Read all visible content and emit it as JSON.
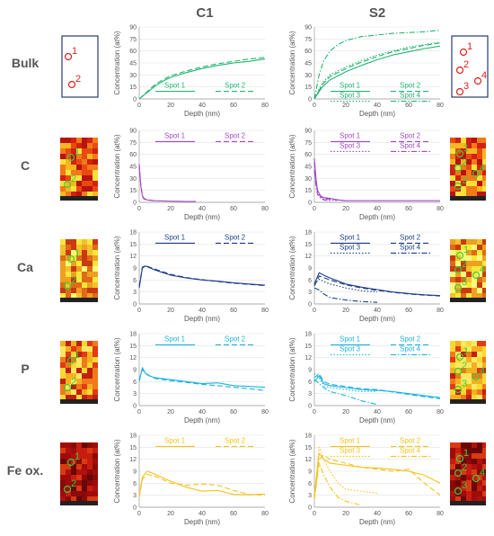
{
  "columns": [
    "C1",
    "S2"
  ],
  "rows": [
    "Bulk",
    "C",
    "Ca",
    "P",
    "Fe ox."
  ],
  "colors": {
    "Bulk": "#22b573",
    "C": "#a349c8",
    "Ca": "#1f3f8a",
    "P": "#1ab4e0",
    "Fe ox.": "#f5c21b",
    "spot_marker_bulk": "#e0201b",
    "spot_marker_map": "#3ccb3c"
  },
  "chart_data": [
    {
      "type": "line",
      "row": "Bulk",
      "sample": "C1",
      "xlabel": "Depth (nm)",
      "ylabel": "Concentration (at%)",
      "xlim": [
        0,
        80
      ],
      "ylim": [
        0,
        90
      ],
      "yticks": [
        0,
        15,
        30,
        45,
        60,
        75,
        90
      ],
      "xticks": [
        0,
        20,
        40,
        60,
        80
      ],
      "series": [
        {
          "name": "Spot 1",
          "style": "solid",
          "x": [
            0,
            5,
            10,
            15,
            20,
            30,
            40,
            50,
            60,
            70,
            80
          ],
          "y": [
            0,
            8,
            16,
            22,
            27,
            33,
            38,
            42,
            45,
            47,
            50
          ]
        },
        {
          "name": "Spot 2",
          "style": "dash",
          "x": [
            0,
            5,
            10,
            15,
            20,
            30,
            40,
            50,
            60,
            70,
            80
          ],
          "y": [
            0,
            9,
            18,
            24,
            29,
            35,
            40,
            44,
            47,
            50,
            52
          ]
        }
      ]
    },
    {
      "type": "line",
      "row": "Bulk",
      "sample": "S2",
      "xlabel": "Depth (nm)",
      "ylabel": "Concentration (at%)",
      "xlim": [
        0,
        80
      ],
      "ylim": [
        0,
        90
      ],
      "yticks": [
        0,
        15,
        30,
        45,
        60,
        75,
        90
      ],
      "xticks": [
        0,
        20,
        40,
        60,
        80
      ],
      "series": [
        {
          "name": "Spot 1",
          "style": "solid",
          "x": [
            0,
            5,
            10,
            20,
            30,
            40,
            50,
            60,
            70,
            80
          ],
          "y": [
            0,
            15,
            24,
            34,
            42,
            49,
            55,
            59,
            63,
            66
          ]
        },
        {
          "name": "Spot 2",
          "style": "dash",
          "x": [
            0,
            5,
            10,
            20,
            30,
            40,
            50,
            60,
            70,
            80
          ],
          "y": [
            0,
            18,
            28,
            38,
            46,
            53,
            59,
            63,
            67,
            70
          ]
        },
        {
          "name": "Spot 3",
          "style": "dot",
          "x": [
            0,
            5,
            10,
            20,
            30,
            40,
            50,
            60,
            70,
            80
          ],
          "y": [
            0,
            20,
            30,
            40,
            48,
            55,
            60,
            65,
            68,
            71
          ]
        },
        {
          "name": "Spot 4",
          "style": "dashdot",
          "x": [
            0,
            3,
            6,
            10,
            15,
            20,
            30,
            40,
            50,
            60,
            70,
            80
          ],
          "y": [
            0,
            30,
            48,
            60,
            68,
            73,
            78,
            80,
            82,
            83,
            84,
            86
          ]
        }
      ]
    },
    {
      "type": "line",
      "row": "C",
      "sample": "C1",
      "xlabel": "Depth (nm)",
      "ylabel": "Concentration (at%)",
      "xlim": [
        0,
        80
      ],
      "ylim": [
        0,
        90
      ],
      "yticks": [
        0,
        15,
        30,
        45,
        60,
        75,
        90
      ],
      "xticks": [
        0,
        20,
        40,
        60,
        80
      ],
      "series": [
        {
          "name": "Spot 1",
          "style": "solid",
          "x": [
            0,
            1,
            2,
            3,
            5,
            10,
            20,
            30,
            36
          ],
          "y": [
            45,
            20,
            8,
            4,
            3,
            2,
            1.5,
            1,
            1
          ]
        },
        {
          "name": "Spot 2",
          "style": "dash",
          "x": [
            0,
            1,
            2,
            3,
            5,
            10
          ],
          "y": [
            48,
            22,
            9,
            5,
            3,
            2
          ]
        }
      ]
    },
    {
      "type": "line",
      "row": "C",
      "sample": "S2",
      "xlabel": "Depth (nm)",
      "ylabel": "Concentration (at%)",
      "xlim": [
        0,
        80
      ],
      "ylim": [
        0,
        90
      ],
      "yticks": [
        0,
        15,
        30,
        45,
        60,
        75,
        90
      ],
      "xticks": [
        0,
        20,
        40,
        60,
        80
      ],
      "series": [
        {
          "name": "Spot 1",
          "style": "solid",
          "x": [
            0,
            1,
            2,
            4,
            6,
            10,
            15,
            20,
            30,
            40,
            60,
            80
          ],
          "y": [
            55,
            30,
            15,
            8,
            6,
            5,
            3,
            2,
            2,
            2,
            2,
            2
          ]
        },
        {
          "name": "Spot 2",
          "style": "dash",
          "x": [
            0,
            1,
            2,
            4,
            6,
            10,
            15,
            20
          ],
          "y": [
            50,
            28,
            14,
            7,
            5,
            4,
            3,
            2
          ]
        },
        {
          "name": "Spot 3",
          "style": "dot",
          "x": [
            0,
            1,
            2,
            4,
            6,
            10,
            15
          ],
          "y": [
            45,
            24,
            12,
            7,
            4,
            3,
            2
          ]
        },
        {
          "name": "Spot 4",
          "style": "dashdot",
          "x": [
            0,
            1,
            2,
            4,
            6,
            10
          ],
          "y": [
            40,
            20,
            10,
            5,
            3,
            2
          ]
        }
      ]
    },
    {
      "type": "line",
      "row": "Ca",
      "sample": "C1",
      "xlabel": "Depth (nm)",
      "ylabel": "Concentration (at%)",
      "xlim": [
        0,
        80
      ],
      "ylim": [
        0,
        18
      ],
      "yticks": [
        0,
        3,
        6,
        9,
        12,
        15,
        18
      ],
      "xticks": [
        0,
        20,
        40,
        60,
        80
      ],
      "series": [
        {
          "name": "Spot 1",
          "style": "solid",
          "x": [
            0,
            2,
            4,
            10,
            20,
            30,
            40,
            50,
            60,
            70,
            80
          ],
          "y": [
            4,
            9,
            9.5,
            8.5,
            7.2,
            6.5,
            6,
            5.7,
            5.3,
            5,
            4.7
          ]
        },
        {
          "name": "Spot 2",
          "style": "dash",
          "x": [
            0,
            2,
            4,
            10,
            20,
            30,
            40,
            50,
            60,
            70,
            80
          ],
          "y": [
            4.5,
            9.2,
            9.6,
            8.7,
            7.4,
            6.6,
            6.1,
            5.6,
            5.2,
            4.9,
            4.6
          ]
        }
      ]
    },
    {
      "type": "line",
      "row": "Ca",
      "sample": "S2",
      "xlabel": "Depth (nm)",
      "ylabel": "Concentration (at%)",
      "xlim": [
        0,
        80
      ],
      "ylim": [
        0,
        18
      ],
      "yticks": [
        0,
        3,
        6,
        9,
        12,
        15,
        18
      ],
      "xticks": [
        0,
        20,
        40,
        60,
        80
      ],
      "series": [
        {
          "name": "Spot 1",
          "style": "solid",
          "x": [
            0,
            3,
            6,
            10,
            20,
            30,
            40,
            50,
            60,
            70,
            80
          ],
          "y": [
            5,
            7.8,
            7.2,
            6.5,
            5,
            4.2,
            3.6,
            3,
            2.6,
            2.3,
            2.1
          ]
        },
        {
          "name": "Spot 2",
          "style": "dash",
          "x": [
            0,
            3,
            6,
            10,
            20,
            30,
            40,
            50,
            60,
            70,
            80
          ],
          "y": [
            4.5,
            7,
            6.6,
            6,
            4.8,
            4,
            3.4,
            2.9,
            2.5,
            2.2,
            2
          ]
        },
        {
          "name": "Spot 3",
          "style": "dot",
          "x": [
            0,
            3,
            6,
            10,
            20,
            30,
            40
          ],
          "y": [
            5,
            6.2,
            5.6,
            5,
            4,
            3.3,
            3
          ]
        },
        {
          "name": "Spot 4",
          "style": "dashdot",
          "x": [
            0,
            3,
            6,
            10,
            20,
            30,
            40
          ],
          "y": [
            4,
            3.5,
            2.5,
            1.6,
            1,
            0.6,
            0.4
          ]
        }
      ]
    },
    {
      "type": "line",
      "row": "P",
      "sample": "C1",
      "xlabel": "Depth (nm)",
      "ylabel": "Concentration (at%)",
      "xlim": [
        0,
        80
      ],
      "ylim": [
        0,
        18
      ],
      "yticks": [
        0,
        3,
        6,
        9,
        12,
        15,
        18
      ],
      "xticks": [
        0,
        20,
        40,
        60,
        80
      ],
      "series": [
        {
          "name": "Spot 1",
          "style": "solid",
          "x": [
            0,
            2,
            4,
            6,
            10,
            20,
            30,
            40,
            50,
            60,
            70,
            80
          ],
          "y": [
            6,
            9.5,
            8,
            7.5,
            7,
            6.5,
            6,
            5.5,
            5.7,
            5,
            4.8,
            4.6
          ]
        },
        {
          "name": "Spot 2",
          "style": "dash",
          "x": [
            0,
            2,
            4,
            6,
            10,
            20,
            30,
            40,
            50,
            60,
            70,
            80
          ],
          "y": [
            6.5,
            9,
            8.2,
            7.6,
            6.8,
            6.2,
            5.8,
            5.3,
            5,
            4.6,
            4.2,
            3.8
          ]
        }
      ]
    },
    {
      "type": "line",
      "row": "P",
      "sample": "S2",
      "xlabel": "Depth (nm)",
      "ylabel": "Concentration (at%)",
      "xlim": [
        0,
        80
      ],
      "ylim": [
        0,
        18
      ],
      "yticks": [
        0,
        3,
        6,
        9,
        12,
        15,
        18
      ],
      "xticks": [
        0,
        20,
        40,
        60,
        80
      ],
      "series": [
        {
          "name": "Spot 1",
          "style": "solid",
          "x": [
            0,
            3,
            6,
            10,
            20,
            30,
            40,
            50,
            60,
            70,
            80
          ],
          "y": [
            6,
            7.5,
            5.5,
            5,
            4.5,
            4,
            3.8,
            3.5,
            3,
            2.5,
            2
          ]
        },
        {
          "name": "Spot 2",
          "style": "dash",
          "x": [
            0,
            3,
            6,
            10,
            20,
            30,
            40,
            50,
            60,
            70,
            80
          ],
          "y": [
            7,
            8,
            6,
            5.3,
            4.8,
            4.2,
            4,
            3.4,
            2.8,
            2.2,
            1.7
          ]
        },
        {
          "name": "Spot 3",
          "style": "dot",
          "x": [
            0,
            3,
            6,
            10,
            20,
            30,
            40
          ],
          "y": [
            8,
            7,
            5,
            4.5,
            4,
            3.5,
            3.6
          ]
        },
        {
          "name": "Spot 4",
          "style": "dashdot",
          "x": [
            0,
            3,
            6,
            10,
            20,
            30,
            40
          ],
          "y": [
            6.5,
            5.5,
            4.5,
            3.5,
            2.5,
            1.2,
            0.3
          ]
        }
      ]
    },
    {
      "type": "line",
      "row": "Fe ox.",
      "sample": "C1",
      "xlabel": "Depth (nm)",
      "ylabel": "Concentration (at%)",
      "xlim": [
        0,
        80
      ],
      "ylim": [
        0,
        18
      ],
      "yticks": [
        0,
        3,
        6,
        9,
        12,
        15,
        18
      ],
      "xticks": [
        0,
        20,
        40,
        60,
        80
      ],
      "series": [
        {
          "name": "Spot 1",
          "style": "solid",
          "x": [
            0,
            2,
            5,
            10,
            20,
            30,
            40,
            50,
            60,
            70,
            80
          ],
          "y": [
            3,
            7.5,
            9,
            8.3,
            6.5,
            5,
            4,
            4.2,
            3.2,
            3.1,
            3.3
          ]
        },
        {
          "name": "Spot 2",
          "style": "dash",
          "x": [
            0,
            2,
            5,
            10,
            20,
            30,
            40,
            50,
            60,
            70,
            80
          ],
          "y": [
            2.5,
            7,
            8.2,
            7.8,
            6,
            5.5,
            5.8,
            5.5,
            4.2,
            3.2,
            3
          ]
        }
      ]
    },
    {
      "type": "line",
      "row": "Fe ox.",
      "sample": "S2",
      "xlabel": "Depth (nm)",
      "ylabel": "Concentration (at%)",
      "xlim": [
        0,
        80
      ],
      "ylim": [
        0,
        18
      ],
      "yticks": [
        0,
        3,
        6,
        9,
        12,
        15,
        18
      ],
      "xticks": [
        0,
        20,
        40,
        60,
        80
      ],
      "series": [
        {
          "name": "Spot 1",
          "style": "solid",
          "x": [
            0,
            3,
            6,
            10,
            20,
            30,
            40,
            50,
            60,
            70,
            80
          ],
          "y": [
            3,
            13.5,
            12,
            11,
            10.5,
            10,
            9.8,
            9.5,
            9,
            8,
            6
          ]
        },
        {
          "name": "Spot 2",
          "style": "dash",
          "x": [
            0,
            3,
            6,
            10,
            20,
            30,
            40,
            50,
            60,
            70,
            80
          ],
          "y": [
            2,
            12,
            13,
            12,
            11,
            10,
            9.5,
            9,
            9.5,
            6,
            3
          ]
        },
        {
          "name": "Spot 3",
          "style": "dot",
          "x": [
            0,
            3,
            6,
            10,
            15,
            20,
            30,
            40
          ],
          "y": [
            3,
            15,
            12,
            9,
            6,
            4.5,
            4,
            3.5
          ]
        },
        {
          "name": "Spot 4",
          "style": "dashdot",
          "x": [
            0,
            3,
            6,
            10,
            15,
            20,
            30
          ],
          "y": [
            2,
            11,
            8,
            5,
            2.5,
            1.5,
            0.5
          ]
        }
      ]
    }
  ],
  "spot_labels": {
    "Bulk": {
      "C1": [
        "1",
        "2"
      ],
      "S2": [
        "1",
        "2",
        "3",
        "4"
      ]
    },
    "C": {
      "C1": [
        "1",
        "2"
      ],
      "S2": [
        "1",
        "2",
        "3",
        "4"
      ]
    },
    "Ca": {
      "C1": [
        "1",
        "2"
      ],
      "S2": [
        "1",
        "2",
        "3",
        "4"
      ]
    },
    "P": {
      "C1": [
        "1",
        "2"
      ],
      "S2": [
        "1",
        "2",
        "3",
        "4"
      ]
    },
    "Fe ox.": {
      "C1": [
        "1",
        "2"
      ],
      "S2": [
        "1",
        "2",
        "3",
        "4"
      ]
    }
  }
}
